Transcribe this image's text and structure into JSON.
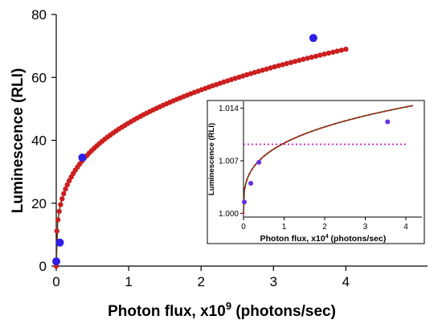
{
  "chart_data": [
    {
      "type": "scatter",
      "panel": "main",
      "xlabel": "Photon flux, x10",
      "xlabel_sup": "9",
      "xlabel_unit": " (photons/sec)",
      "ylabel": "Luminescence (RLI)",
      "xlim": [
        0,
        4.5
      ],
      "ylim": [
        0,
        80
      ],
      "xticks": [
        "0",
        "1",
        "2",
        "3",
        "4"
      ],
      "yticks": [
        "0",
        "20",
        "40",
        "60",
        "80"
      ],
      "grid": false,
      "series": [
        {
          "role": "fitted curve",
          "color": "#cc1f1f",
          "marker_color": "#cc1f1f",
          "line_color": "#5c3a12",
          "equation_form": "y = a * x^b",
          "a": 45.5,
          "b": 0.3,
          "x_range": [
            0.0,
            4.0
          ]
        },
        {
          "role": "measured points",
          "color": "#2b1fe8",
          "x": [
            0.0,
            0.05,
            0.36,
            3.55
          ],
          "y": [
            1.5,
            7.5,
            34.5,
            72.5
          ]
        }
      ]
    },
    {
      "type": "scatter",
      "panel": "inset",
      "xlabel": "Photon flux,  x10",
      "xlabel_sup": "4",
      "xlabel_unit": " (photons/sec)",
      "ylabel": "Luminescence (RLI)",
      "xlim": [
        0,
        4.4
      ],
      "ylim": [
        0.9995,
        1.0145
      ],
      "xticks": [
        "0",
        "1",
        "2",
        "3",
        "4"
      ],
      "yticks": [
        "1.000",
        "1.007",
        "1.014"
      ],
      "ytick_values": [
        1.0,
        1.007,
        1.014
      ],
      "grid": false,
      "reference_line": {
        "y": 1.0092,
        "color": "#cc22cc",
        "style": "dotted"
      },
      "series": [
        {
          "role": "fitted curve",
          "color": "#5c3a12",
          "marker_color": "#cc1f1f",
          "equation_form": "y = 1 + c * x^d",
          "c": 0.00935,
          "d": 0.3,
          "x_range": [
            0.0,
            4.15
          ]
        },
        {
          "role": "measured points",
          "color": "#6a2ee0",
          "x": [
            0.02,
            0.18,
            0.38,
            3.55
          ],
          "y": [
            1.0015,
            1.004,
            1.0068,
            1.0122
          ]
        }
      ]
    }
  ]
}
